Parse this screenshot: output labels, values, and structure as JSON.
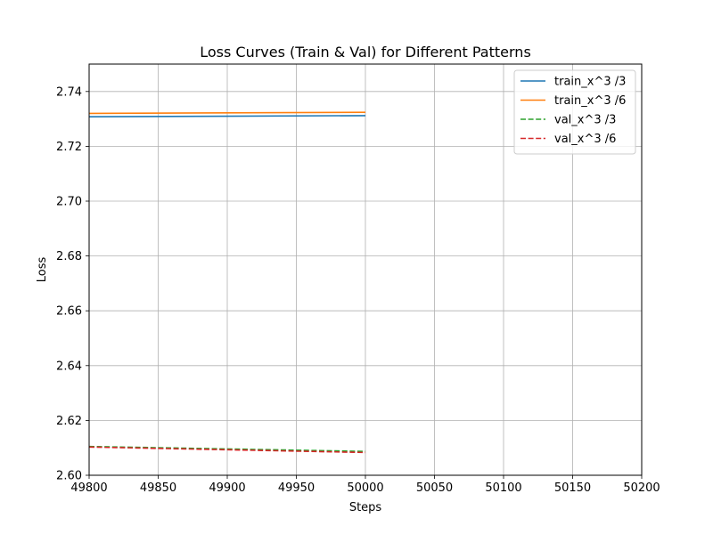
{
  "chart_data": {
    "type": "line",
    "title": "Loss Curves (Train & Val) for Different Patterns",
    "xlabel": "Steps",
    "ylabel": "Loss",
    "xlim": [
      49800,
      50200
    ],
    "ylim": [
      2.6,
      2.75
    ],
    "xticks": [
      49800,
      49850,
      49900,
      49950,
      50000,
      50050,
      50100,
      50150,
      50200
    ],
    "yticks": [
      2.6,
      2.62,
      2.64,
      2.66,
      2.68,
      2.7,
      2.72,
      2.74
    ],
    "xtick_labels": [
      "49800",
      "49850",
      "49900",
      "49950",
      "50000",
      "50050",
      "50100",
      "50150",
      "50200"
    ],
    "ytick_labels": [
      "2.60",
      "2.62",
      "2.64",
      "2.66",
      "2.68",
      "2.70",
      "2.72",
      "2.74"
    ],
    "grid": true,
    "legend_position": "top-right",
    "series": [
      {
        "name": "train_x^3 /3",
        "color": "#1f77b4",
        "dash": "solid",
        "x": [
          49800,
          50000
        ],
        "y": [
          2.7308,
          2.7312
        ]
      },
      {
        "name": "train_x^3 /6",
        "color": "#ff7f0e",
        "dash": "solid",
        "x": [
          49800,
          50000
        ],
        "y": [
          2.732,
          2.7324
        ]
      },
      {
        "name": "val_x^3 /3",
        "color": "#2ca02c",
        "dash": "dashed",
        "x": [
          49800,
          50000
        ],
        "y": [
          2.6105,
          2.6087
        ]
      },
      {
        "name": "val_x^3 /6",
        "color": "#d62728",
        "dash": "dashed",
        "x": [
          49800,
          50000
        ],
        "y": [
          2.6103,
          2.6083
        ]
      }
    ]
  }
}
